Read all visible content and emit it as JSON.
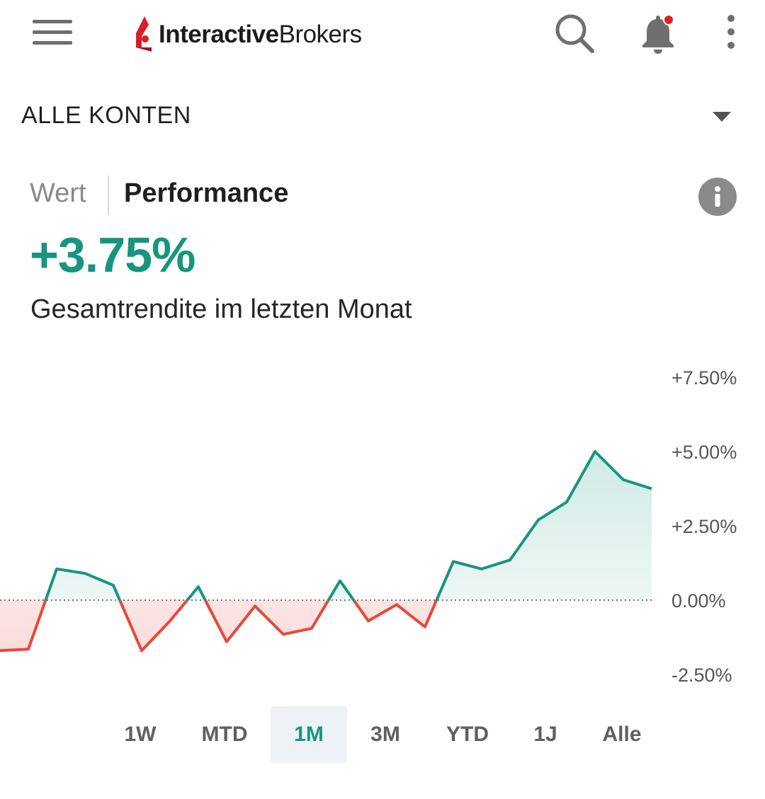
{
  "header": {
    "logo_bold": "Interactive",
    "logo_light": "Brokers",
    "menu_icon": "hamburger-menu-icon",
    "search_icon": "search-icon",
    "bell_icon": "bell-icon",
    "more_icon": "more-vertical-icon",
    "notification_dot_color": "#e02020"
  },
  "account": {
    "label": "ALLE KONTEN"
  },
  "tabs": {
    "wert": "Wert",
    "performance": "Performance",
    "active": "performance"
  },
  "metric": {
    "value": "+3.75%",
    "caption": "Gesamtrendite im letzten Monat",
    "positive_color": "#17957f",
    "negative_color": "#e8473b"
  },
  "chart_data": {
    "type": "area",
    "y_ticks": [
      "+7.50%",
      "+5.00%",
      "+2.50%",
      "0.00%",
      "-2.50%"
    ],
    "y_tick_values": [
      7.5,
      5.0,
      2.5,
      0.0,
      -2.5
    ],
    "ylim": [
      -2.5,
      7.5
    ],
    "baseline": 0,
    "values": [
      -1.7,
      -1.65,
      1.05,
      0.9,
      0.5,
      -1.7,
      -0.7,
      0.45,
      -1.4,
      -0.2,
      -1.15,
      -0.95,
      0.65,
      -0.7,
      -0.15,
      -0.9,
      1.3,
      1.05,
      1.35,
      2.7,
      3.3,
      5.0,
      4.05,
      3.75
    ],
    "grid": false
  },
  "ranges": {
    "items": [
      "1W",
      "MTD",
      "1M",
      "3M",
      "YTD",
      "1J",
      "Alle"
    ],
    "selected": "1M"
  }
}
